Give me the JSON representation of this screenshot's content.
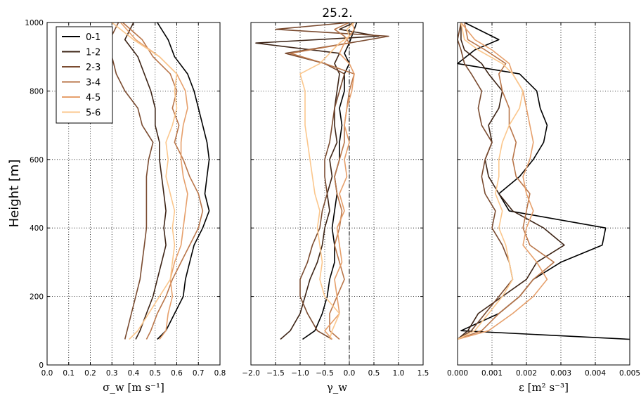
{
  "figure": {
    "title": "25.2.",
    "ylabel": "Height [m]"
  },
  "colors": [
    "#000000",
    "#3d2416",
    "#7a4b30",
    "#b9764a",
    "#e6a06c",
    "#fbc78d"
  ],
  "legend_labels": [
    "0-1",
    "1-2",
    "2-3",
    "3-4",
    "4-5",
    "5-6"
  ],
  "chart_data": [
    {
      "type": "line",
      "panel": "sigma_w",
      "xlabel": "σ_w [m s⁻¹]",
      "ylabel": "Height [m]",
      "xlim": [
        0.0,
        0.8
      ],
      "ylim": [
        0,
        1000
      ],
      "xticks": [
        "0.0",
        "0.1",
        "0.2",
        "0.3",
        "0.4",
        "0.5",
        "0.6",
        "0.7",
        "0.8"
      ],
      "yticks": [
        "0",
        "200",
        "400",
        "600",
        "800",
        "1000"
      ],
      "grid": true,
      "legend": "top-left",
      "y": [
        75,
        100,
        150,
        200,
        250,
        300,
        350,
        400,
        450,
        500,
        550,
        600,
        650,
        700,
        750,
        800,
        850,
        900,
        950,
        1000
      ],
      "series": [
        {
          "name": "0-1",
          "values": [
            0.51,
            0.55,
            0.59,
            0.63,
            0.64,
            0.66,
            0.68,
            0.72,
            0.75,
            0.73,
            0.74,
            0.75,
            0.74,
            0.72,
            0.7,
            0.68,
            0.65,
            0.59,
            0.56,
            0.51
          ]
        },
        {
          "name": "1-2",
          "values": [
            0.41,
            0.43,
            0.46,
            0.49,
            0.51,
            0.53,
            0.55,
            0.54,
            0.55,
            0.54,
            0.53,
            0.52,
            0.52,
            0.5,
            0.5,
            0.48,
            0.45,
            0.42,
            0.36,
            0.4
          ]
        },
        {
          "name": "2-3",
          "values": [
            0.36,
            0.37,
            0.39,
            0.41,
            0.43,
            0.44,
            0.45,
            0.46,
            0.46,
            0.46,
            0.46,
            0.47,
            0.49,
            0.44,
            0.42,
            0.36,
            0.32,
            0.3,
            0.29,
            0.33
          ]
        },
        {
          "name": "3-4",
          "values": [
            0.46,
            0.48,
            0.51,
            0.55,
            0.58,
            0.62,
            0.66,
            0.7,
            0.72,
            0.7,
            0.66,
            0.63,
            0.59,
            0.61,
            0.58,
            0.6,
            0.57,
            0.49,
            0.44,
            0.35
          ]
        },
        {
          "name": "4-5",
          "values": [
            0.52,
            0.55,
            0.56,
            0.58,
            0.57,
            0.59,
            0.62,
            0.63,
            0.64,
            0.65,
            0.63,
            0.62,
            0.62,
            0.63,
            0.65,
            0.64,
            0.6,
            0.52,
            0.41,
            0.34
          ]
        },
        {
          "name": "5-6",
          "values": [
            0.38,
            0.42,
            0.47,
            0.52,
            0.57,
            0.58,
            0.59,
            0.58,
            0.59,
            0.57,
            0.55,
            0.56,
            0.55,
            0.58,
            0.6,
            0.59,
            0.6,
            0.52,
            0.4,
            0.3
          ]
        }
      ]
    },
    {
      "type": "line",
      "panel": "gamma_w",
      "title": "25.2.",
      "xlabel": "γ_w",
      "xlim": [
        -2.0,
        1.5
      ],
      "ylim": [
        0,
        1000
      ],
      "xticks": [
        "−2.0",
        "−1.5",
        "−1.0",
        "−0.5",
        "0.0",
        "0.5",
        "1.0",
        "1.5"
      ],
      "grid": true,
      "reference_line_x": 0,
      "y": [
        75,
        100,
        150,
        200,
        250,
        300,
        350,
        400,
        450,
        500,
        550,
        600,
        650,
        700,
        750,
        800,
        850,
        880,
        910,
        940,
        960,
        980,
        1000
      ],
      "series": [
        {
          "name": "0-1",
          "values": [
            -0.95,
            -0.7,
            -0.55,
            -0.45,
            -0.4,
            -0.3,
            -0.3,
            -0.35,
            -0.3,
            -0.25,
            -0.3,
            -0.2,
            -0.2,
            -0.15,
            -0.2,
            -0.1,
            -0.1,
            0.0,
            -0.1,
            0.0,
            0.05,
            0.1,
            0.15
          ]
        },
        {
          "name": "1-2",
          "values": [
            -1.4,
            -1.2,
            -1.0,
            -0.9,
            -0.8,
            -0.65,
            -0.55,
            -0.5,
            -0.4,
            -0.45,
            -0.35,
            -0.4,
            -0.25,
            -0.3,
            -0.3,
            -0.25,
            -0.2,
            -0.3,
            -0.2,
            -1.9,
            0.6,
            -0.2,
            0.1
          ]
        },
        {
          "name": "2-3",
          "values": [
            -0.35,
            -0.65,
            -0.85,
            -1.0,
            -1.0,
            -0.85,
            -0.75,
            -0.6,
            -0.55,
            -0.45,
            -0.5,
            -0.5,
            -0.4,
            -0.35,
            -0.3,
            -0.2,
            -0.1,
            -0.5,
            -1.3,
            0.0,
            0.8,
            -1.5,
            0.0
          ]
        },
        {
          "name": "3-4",
          "values": [
            -0.2,
            -0.4,
            -0.4,
            -0.25,
            -0.1,
            -0.2,
            -0.3,
            -0.2,
            -0.15,
            -0.25,
            -0.3,
            -0.2,
            -0.1,
            -0.1,
            -0.05,
            0.0,
            0.1,
            -0.5,
            -1.2,
            0.0,
            -0.1,
            -0.3,
            0.0
          ]
        },
        {
          "name": "4-5",
          "values": [
            -0.35,
            -0.5,
            -0.2,
            -0.25,
            -0.3,
            -0.15,
            -0.2,
            -0.25,
            -0.1,
            -0.2,
            -0.05,
            -0.1,
            0.0,
            -0.1,
            -0.05,
            0.05,
            0.1,
            0.0,
            -0.2,
            -0.1,
            0.0,
            0.1,
            0.05
          ]
        },
        {
          "name": "5-6",
          "values": [
            -0.4,
            -0.35,
            -0.2,
            -0.5,
            -0.6,
            -0.55,
            -0.6,
            -0.65,
            -0.6,
            -0.7,
            -0.75,
            -0.8,
            -0.85,
            -0.9,
            -0.9,
            -0.9,
            -1.0,
            -0.6,
            -0.4,
            -0.2,
            0.0,
            -0.05,
            0.1
          ]
        }
      ]
    },
    {
      "type": "line",
      "panel": "epsilon",
      "xlabel": "ε [m² s⁻³]",
      "xlim": [
        0.0,
        0.005
      ],
      "ylim": [
        0,
        1000
      ],
      "xticks": [
        "0.000",
        "0.001",
        "0.002",
        "0.003",
        "0.004",
        "0.005"
      ],
      "grid": true,
      "y": [
        75,
        100,
        150,
        200,
        250,
        300,
        350,
        400,
        450,
        500,
        550,
        600,
        650,
        700,
        750,
        800,
        850,
        880,
        920,
        950,
        1000
      ],
      "series": [
        {
          "name": "0-1",
          "values": [
            0.005,
            0.0001,
            0.0012,
            0.0018,
            0.0022,
            0.003,
            0.0042,
            0.0043,
            0.0015,
            0.0012,
            0.0018,
            0.0022,
            0.0025,
            0.0026,
            0.0024,
            0.0023,
            0.0018,
            0.0,
            0.0005,
            0.0012,
            0.0002
          ]
        },
        {
          "name": "1-2",
          "values": [
            0.0,
            0.0003,
            0.0006,
            0.0013,
            0.002,
            0.0023,
            0.0031,
            0.0025,
            0.0016,
            0.0012,
            0.0009,
            0.0008,
            0.001,
            0.0009,
            0.0012,
            0.0013,
            0.0009,
            0.0007,
            0.0002,
            0.0001,
            0.0001
          ]
        },
        {
          "name": "2-3",
          "values": [
            0.0,
            0.0004,
            0.0008,
            0.0012,
            0.0016,
            0.0015,
            0.0013,
            0.001,
            0.0011,
            0.0008,
            0.0007,
            0.0008,
            0.001,
            0.0007,
            0.0006,
            0.0007,
            0.0004,
            0.0002,
            0.0001,
            0.0,
            0.0001
          ]
        },
        {
          "name": "3-4",
          "values": [
            0.0,
            0.0007,
            0.0012,
            0.0018,
            0.0022,
            0.0028,
            0.0021,
            0.0019,
            0.002,
            0.0021,
            0.0017,
            0.0016,
            0.0017,
            0.0015,
            0.0015,
            0.0013,
            0.0012,
            0.0014,
            0.0008,
            0.0003,
            0.0002
          ]
        },
        {
          "name": "4-5",
          "values": [
            0.0,
            0.0009,
            0.0016,
            0.0022,
            0.0026,
            0.0023,
            0.0019,
            0.002,
            0.0022,
            0.002,
            0.0019,
            0.0021,
            0.0022,
            0.0021,
            0.002,
            0.0019,
            0.0016,
            0.0015,
            0.001,
            0.0005,
            0.0001
          ]
        },
        {
          "name": "5-6",
          "values": [
            0.0,
            0.0005,
            0.0009,
            0.0013,
            0.0016,
            0.0015,
            0.0014,
            0.0012,
            0.0013,
            0.0011,
            0.0012,
            0.0012,
            0.0013,
            0.0015,
            0.0018,
            0.0019,
            0.0016,
            0.0013,
            0.0006,
            0.0002,
            0.0001
          ]
        }
      ]
    }
  ]
}
